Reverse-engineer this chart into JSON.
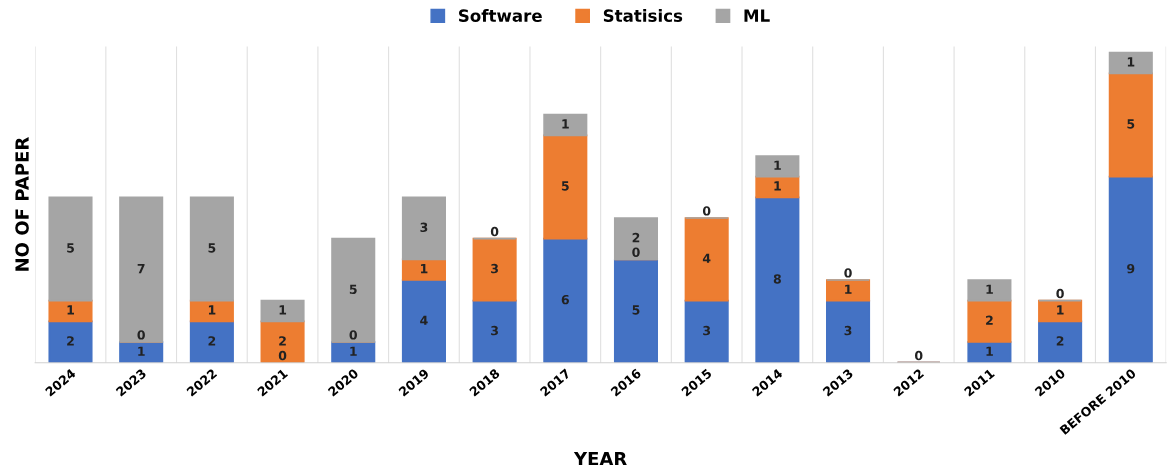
{
  "chart_data": {
    "type": "bar",
    "stacked": true,
    "xlabel": "YEAR",
    "ylabel": "NO OF PAPER",
    "legend": "top",
    "categories": [
      "2024",
      "2023",
      "2022",
      "2021",
      "2020",
      "2019",
      "2018",
      "2017",
      "2016",
      "2015",
      "2014",
      "2013",
      "2012",
      "2011",
      "2010",
      "BEFORE 2010"
    ],
    "series": [
      {
        "name": "Software",
        "color": "#4472c4",
        "values": [
          2,
          1,
          2,
          0,
          1,
          4,
          3,
          6,
          5,
          3,
          8,
          3,
          0,
          1,
          2,
          9
        ],
        "value_labels": [
          "2",
          "1",
          "2",
          "0",
          "1",
          "4",
          "3",
          "6",
          "5",
          "3",
          "8",
          "3",
          "0",
          "1",
          "2",
          "9"
        ]
      },
      {
        "name": "Statisics",
        "color": "#ed7d31",
        "values": [
          1,
          0,
          1,
          2,
          0,
          1,
          3,
          5,
          0,
          4,
          1,
          1,
          0,
          2,
          1,
          5
        ],
        "value_labels": [
          "1",
          "0",
          "1",
          "2",
          "0",
          "1",
          "3",
          "5",
          "0",
          "4",
          "1",
          "1",
          null,
          "2",
          "1",
          "5"
        ]
      },
      {
        "name": "ML",
        "color": "#a5a5a5",
        "values": [
          5,
          7,
          5,
          1,
          5,
          3,
          0,
          1,
          2,
          0,
          1,
          0,
          0,
          1,
          0,
          1
        ],
        "value_labels": [
          "5",
          "7",
          "5",
          "1",
          "5",
          "3",
          "0",
          "1",
          "2",
          "0",
          "1",
          "0",
          null,
          "1",
          "0",
          "1"
        ]
      }
    ]
  }
}
